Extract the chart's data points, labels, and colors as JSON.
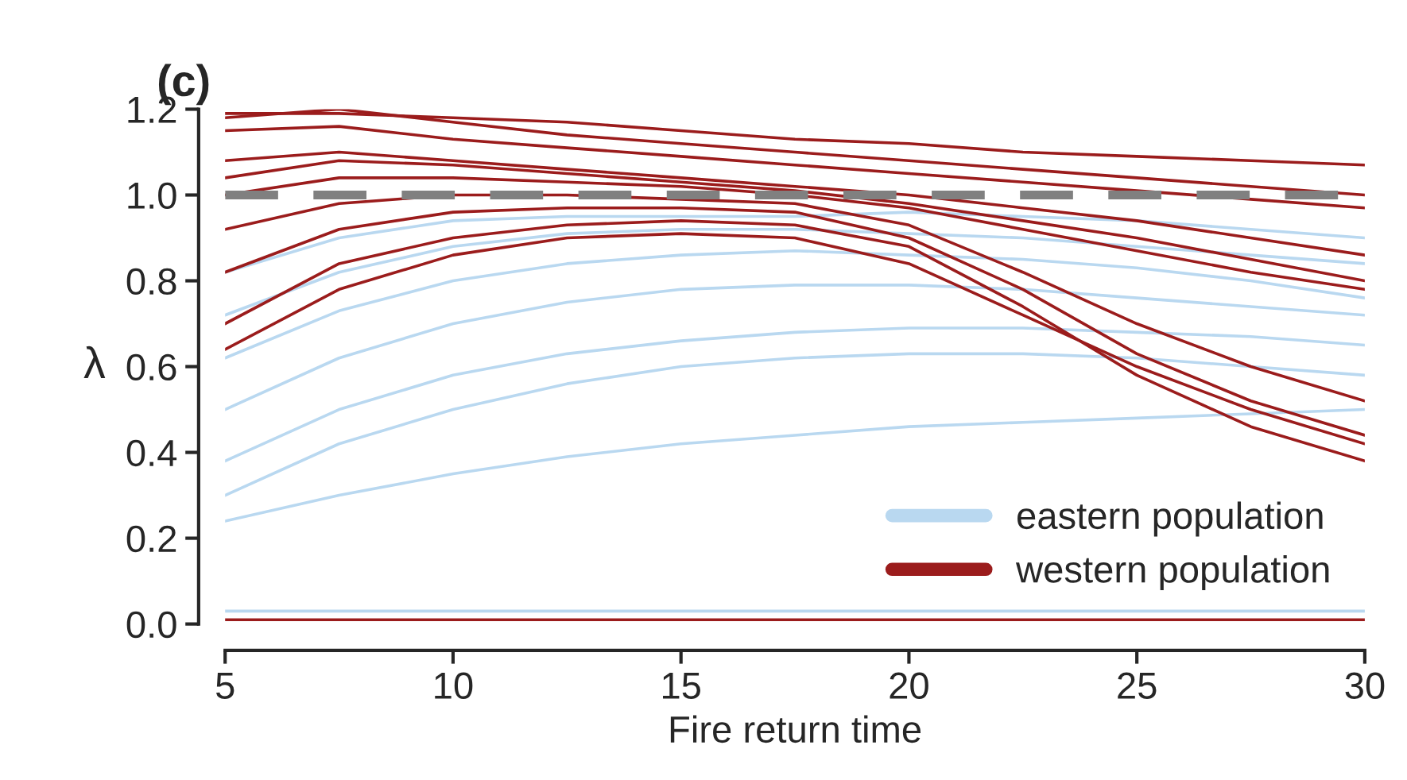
{
  "chart_data": {
    "type": "line",
    "title": "(c)",
    "xlabel": "Fire return time",
    "ylabel": "λ",
    "x": [
      5,
      7.5,
      10,
      12.5,
      15,
      17.5,
      20,
      22.5,
      25,
      27.5,
      30
    ],
    "xlim": [
      5,
      30
    ],
    "xticks": [
      5,
      10,
      15,
      20,
      25,
      30
    ],
    "ylim": [
      0,
      1.2
    ],
    "yticks": [
      {
        "value": 0,
        "label": "0.0"
      },
      0.2,
      0.4,
      0.6,
      0.8,
      {
        "value": 1,
        "label": "1.0"
      },
      1.2
    ],
    "grid": false,
    "legend": "bottom right",
    "line_style": "solid",
    "marker": "none",
    "ref_lines": [
      {
        "axis": "y",
        "value": 1,
        "color": "#808080",
        "line_style": "dashed"
      }
    ],
    "series": [
      {
        "name": "eastern population",
        "color": "#b9d8f0",
        "values": [
          0.24,
          0.3,
          0.35,
          0.39,
          0.42,
          0.44,
          0.46,
          0.47,
          0.48,
          0.49,
          0.5
        ]
      },
      {
        "color": "#b9d8f0",
        "values": [
          0.3,
          0.42,
          0.5,
          0.56,
          0.6,
          0.62,
          0.63,
          0.63,
          0.62,
          0.6,
          0.58
        ]
      },
      {
        "color": "#b9d8f0",
        "values": [
          0.38,
          0.5,
          0.58,
          0.63,
          0.66,
          0.68,
          0.69,
          0.69,
          0.68,
          0.67,
          0.65
        ]
      },
      {
        "color": "#b9d8f0",
        "values": [
          0.5,
          0.62,
          0.7,
          0.75,
          0.78,
          0.79,
          0.79,
          0.78,
          0.76,
          0.74,
          0.72
        ]
      },
      {
        "color": "#b9d8f0",
        "values": [
          0.62,
          0.73,
          0.8,
          0.84,
          0.86,
          0.87,
          0.86,
          0.85,
          0.83,
          0.8,
          0.76
        ]
      },
      {
        "color": "#b9d8f0",
        "values": [
          0.72,
          0.82,
          0.88,
          0.91,
          0.92,
          0.92,
          0.91,
          0.9,
          0.88,
          0.86,
          0.84
        ]
      },
      {
        "color": "#b9d8f0",
        "values": [
          0.82,
          0.9,
          0.94,
          0.95,
          0.95,
          0.95,
          0.96,
          0.95,
          0.94,
          0.92,
          0.9
        ]
      },
      {
        "color": "#b9d8f0",
        "values": [
          0.03,
          0.03,
          0.03,
          0.03,
          0.03,
          0.03,
          0.03,
          0.03,
          0.03,
          0.03,
          0.03
        ]
      },
      {
        "name": "western population",
        "color": "#9b1c1c",
        "values": [
          1.19,
          1.19,
          1.18,
          1.17,
          1.15,
          1.13,
          1.12,
          1.1,
          1.09,
          1.08,
          1.07
        ]
      },
      {
        "color": "#9b1c1c",
        "values": [
          1.18,
          1.2,
          1.17,
          1.14,
          1.12,
          1.1,
          1.08,
          1.06,
          1.04,
          1.02,
          1.0
        ]
      },
      {
        "color": "#9b1c1c",
        "values": [
          1.15,
          1.16,
          1.13,
          1.11,
          1.09,
          1.07,
          1.05,
          1.03,
          1.01,
          0.99,
          0.97
        ]
      },
      {
        "color": "#9b1c1c",
        "values": [
          1.08,
          1.1,
          1.08,
          1.06,
          1.04,
          1.02,
          1.0,
          0.97,
          0.94,
          0.9,
          0.86
        ]
      },
      {
        "color": "#9b1c1c",
        "values": [
          1.04,
          1.08,
          1.07,
          1.05,
          1.03,
          1.01,
          0.98,
          0.94,
          0.9,
          0.85,
          0.8
        ]
      },
      {
        "color": "#9b1c1c",
        "values": [
          1.0,
          1.04,
          1.04,
          1.03,
          1.02,
          1.0,
          0.97,
          0.92,
          0.87,
          0.82,
          0.78
        ]
      },
      {
        "color": "#9b1c1c",
        "values": [
          0.92,
          0.98,
          1.0,
          1.0,
          0.99,
          0.98,
          0.93,
          0.82,
          0.7,
          0.6,
          0.52
        ]
      },
      {
        "color": "#9b1c1c",
        "values": [
          0.82,
          0.92,
          0.96,
          0.97,
          0.97,
          0.96,
          0.9,
          0.78,
          0.63,
          0.52,
          0.44
        ]
      },
      {
        "color": "#9b1c1c",
        "values": [
          0.7,
          0.84,
          0.9,
          0.93,
          0.94,
          0.93,
          0.88,
          0.74,
          0.58,
          0.46,
          0.38
        ]
      },
      {
        "color": "#9b1c1c",
        "values": [
          0.64,
          0.78,
          0.86,
          0.9,
          0.91,
          0.9,
          0.84,
          0.72,
          0.6,
          0.5,
          0.42
        ]
      },
      {
        "color": "#9b1c1c",
        "values": [
          0.01,
          0.01,
          0.01,
          0.01,
          0.01,
          0.01,
          0.01,
          0.01,
          0.01,
          0.01,
          0.01
        ]
      }
    ]
  }
}
